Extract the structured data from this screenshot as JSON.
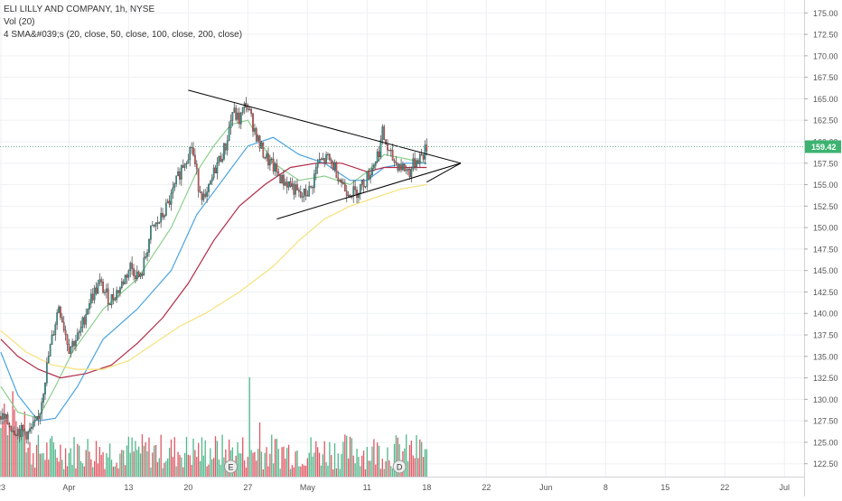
{
  "legend": {
    "symbol": "ELI LILLY AND COMPANY, 1h, NYSE",
    "volume": "Vol (20)",
    "sma": "4 SMA&#039;s (20, close, 50, close, 100, close, 200, close)"
  },
  "colors": {
    "up": "#26a69a",
    "down": "#ef5350",
    "vol_up": "#52b88c",
    "vol_down": "#e05a66",
    "sma20": "#8ccf8c",
    "sma50": "#4aa3e0",
    "sma100": "#b02c4a",
    "sma200": "#f5e27a",
    "trendline": "#000000",
    "grid": "#eef0f3",
    "price_badge": "#3cb371",
    "price_line": "#6fae8a"
  },
  "chart_data": {
    "type": "candlestick",
    "y_axis": {
      "ylim": [
        121.0,
        176.5
      ],
      "ticks": [
        "175.00",
        "172.50",
        "170.00",
        "167.50",
        "165.00",
        "162.50",
        "160.00",
        "157.50",
        "155.00",
        "152.50",
        "150.00",
        "147.50",
        "145.00",
        "142.50",
        "140.00",
        "137.50",
        "135.00",
        "132.50",
        "130.00",
        "127.50",
        "125.00",
        "122.50"
      ],
      "last_price": "159.42"
    },
    "x_axis": {
      "labels": [
        {
          "text": "23",
          "i": 0
        },
        {
          "text": "Apr",
          "i": 40
        },
        {
          "text": "13",
          "i": 75
        },
        {
          "text": "20",
          "i": 110
        },
        {
          "text": "27",
          "i": 145
        },
        {
          "text": "May",
          "i": 180
        },
        {
          "text": "11",
          "i": 215
        },
        {
          "text": "18",
          "i": 250
        },
        {
          "text": "22",
          "i": 285
        },
        {
          "text": "Jun",
          "i": 320
        },
        {
          "text": "8",
          "i": 355
        },
        {
          "text": "15",
          "i": 390
        },
        {
          "text": "22",
          "i": 425
        },
        {
          "text": "Jul",
          "i": 460
        }
      ],
      "total_slots": 472
    },
    "series": [
      {
        "name": "SMA 20",
        "key": "sma20",
        "values": [
          [
            0,
            131.5
          ],
          [
            10,
            128.5
          ],
          [
            22,
            127.8
          ],
          [
            32,
            131.5
          ],
          [
            42,
            135.5
          ],
          [
            60,
            140.5
          ],
          [
            80,
            144.0
          ],
          [
            100,
            150.0
          ],
          [
            115,
            156.5
          ],
          [
            125,
            159.5
          ],
          [
            135,
            162.0
          ],
          [
            145,
            162.5
          ],
          [
            160,
            157.5
          ],
          [
            175,
            155.5
          ],
          [
            190,
            156.0
          ],
          [
            205,
            155.0
          ],
          [
            215,
            156.5
          ],
          [
            225,
            158.5
          ],
          [
            238,
            158.0
          ],
          [
            250,
            157.5
          ]
        ]
      },
      {
        "name": "SMA 50",
        "key": "sma50",
        "values": [
          [
            0,
            135.5
          ],
          [
            10,
            130.5
          ],
          [
            22,
            127.5
          ],
          [
            32,
            127.8
          ],
          [
            45,
            131.5
          ],
          [
            60,
            137.0
          ],
          [
            80,
            140.5
          ],
          [
            100,
            145.0
          ],
          [
            115,
            151.5
          ],
          [
            130,
            155.5
          ],
          [
            145,
            159.5
          ],
          [
            160,
            160.5
          ],
          [
            175,
            158.5
          ],
          [
            190,
            157.5
          ],
          [
            205,
            155.5
          ],
          [
            215,
            155.5
          ],
          [
            225,
            157.0
          ],
          [
            238,
            157.5
          ],
          [
            250,
            157.5
          ]
        ]
      },
      {
        "name": "SMA 100",
        "key": "sma100",
        "values": [
          [
            0,
            137.0
          ],
          [
            10,
            135.0
          ],
          [
            22,
            133.5
          ],
          [
            35,
            132.5
          ],
          [
            50,
            133.0
          ],
          [
            65,
            134.0
          ],
          [
            80,
            136.5
          ],
          [
            95,
            139.5
          ],
          [
            110,
            143.5
          ],
          [
            125,
            148.5
          ],
          [
            140,
            152.5
          ],
          [
            155,
            155.0
          ],
          [
            170,
            157.0
          ],
          [
            185,
            157.5
          ],
          [
            200,
            157.5
          ],
          [
            215,
            156.5
          ],
          [
            225,
            157.0
          ],
          [
            238,
            157.0
          ],
          [
            250,
            157.0
          ]
        ]
      },
      {
        "name": "SMA 200",
        "key": "sma200",
        "values": [
          [
            0,
            138.0
          ],
          [
            15,
            135.5
          ],
          [
            30,
            134.0
          ],
          [
            45,
            133.5
          ],
          [
            60,
            133.5
          ],
          [
            75,
            134.5
          ],
          [
            90,
            136.5
          ],
          [
            105,
            138.5
          ],
          [
            120,
            140.0
          ],
          [
            140,
            142.5
          ],
          [
            160,
            145.5
          ],
          [
            175,
            148.5
          ],
          [
            190,
            151.0
          ],
          [
            205,
            152.5
          ],
          [
            220,
            153.5
          ],
          [
            235,
            154.5
          ],
          [
            250,
            155.0
          ]
        ]
      }
    ],
    "candle_path": [
      [
        0,
        128.0
      ],
      [
        8,
        126.5
      ],
      [
        16,
        126.0
      ],
      [
        22,
        127.5
      ],
      [
        28,
        135.0
      ],
      [
        34,
        141.0
      ],
      [
        40,
        136.0
      ],
      [
        46,
        137.5
      ],
      [
        52,
        141.5
      ],
      [
        58,
        143.5
      ],
      [
        64,
        141.5
      ],
      [
        70,
        143.0
      ],
      [
        76,
        145.5
      ],
      [
        82,
        144.0
      ],
      [
        88,
        149.5
      ],
      [
        94,
        151.0
      ],
      [
        100,
        153.5
      ],
      [
        106,
        157.0
      ],
      [
        112,
        159.5
      ],
      [
        116,
        155.0
      ],
      [
        120,
        153.0
      ],
      [
        126,
        157.0
      ],
      [
        132,
        159.5
      ],
      [
        136,
        163.5
      ],
      [
        140,
        162.5
      ],
      [
        144,
        164.5
      ],
      [
        148,
        162.0
      ],
      [
        152,
        159.5
      ],
      [
        156,
        158.0
      ],
      [
        160,
        157.0
      ],
      [
        165,
        155.5
      ],
      [
        170,
        155.0
      ],
      [
        176,
        153.5
      ],
      [
        182,
        154.5
      ],
      [
        186,
        157.5
      ],
      [
        192,
        158.0
      ],
      [
        196,
        157.0
      ],
      [
        202,
        154.5
      ],
      [
        208,
        154.0
      ],
      [
        214,
        155.5
      ],
      [
        218,
        157.0
      ],
      [
        222,
        159.0
      ],
      [
        224,
        161.0
      ],
      [
        228,
        158.5
      ],
      [
        232,
        157.5
      ],
      [
        236,
        157.0
      ],
      [
        240,
        156.5
      ],
      [
        244,
        158.0
      ],
      [
        248,
        158.5
      ],
      [
        250,
        159.4
      ]
    ],
    "trendlines": [
      {
        "name": "upper",
        "from": [
          110,
          166.0
        ],
        "to": [
          270,
          157.5
        ]
      },
      {
        "name": "lower",
        "from": [
          162,
          151.0
        ],
        "to": [
          270,
          157.5
        ]
      },
      {
        "name": "lower-ext",
        "from": [
          250,
          155.3
        ],
        "to": [
          270,
          157.5
        ]
      }
    ],
    "event_markers": [
      {
        "label": "E",
        "i": 135
      },
      {
        "label": "D",
        "i": 234
      }
    ]
  }
}
